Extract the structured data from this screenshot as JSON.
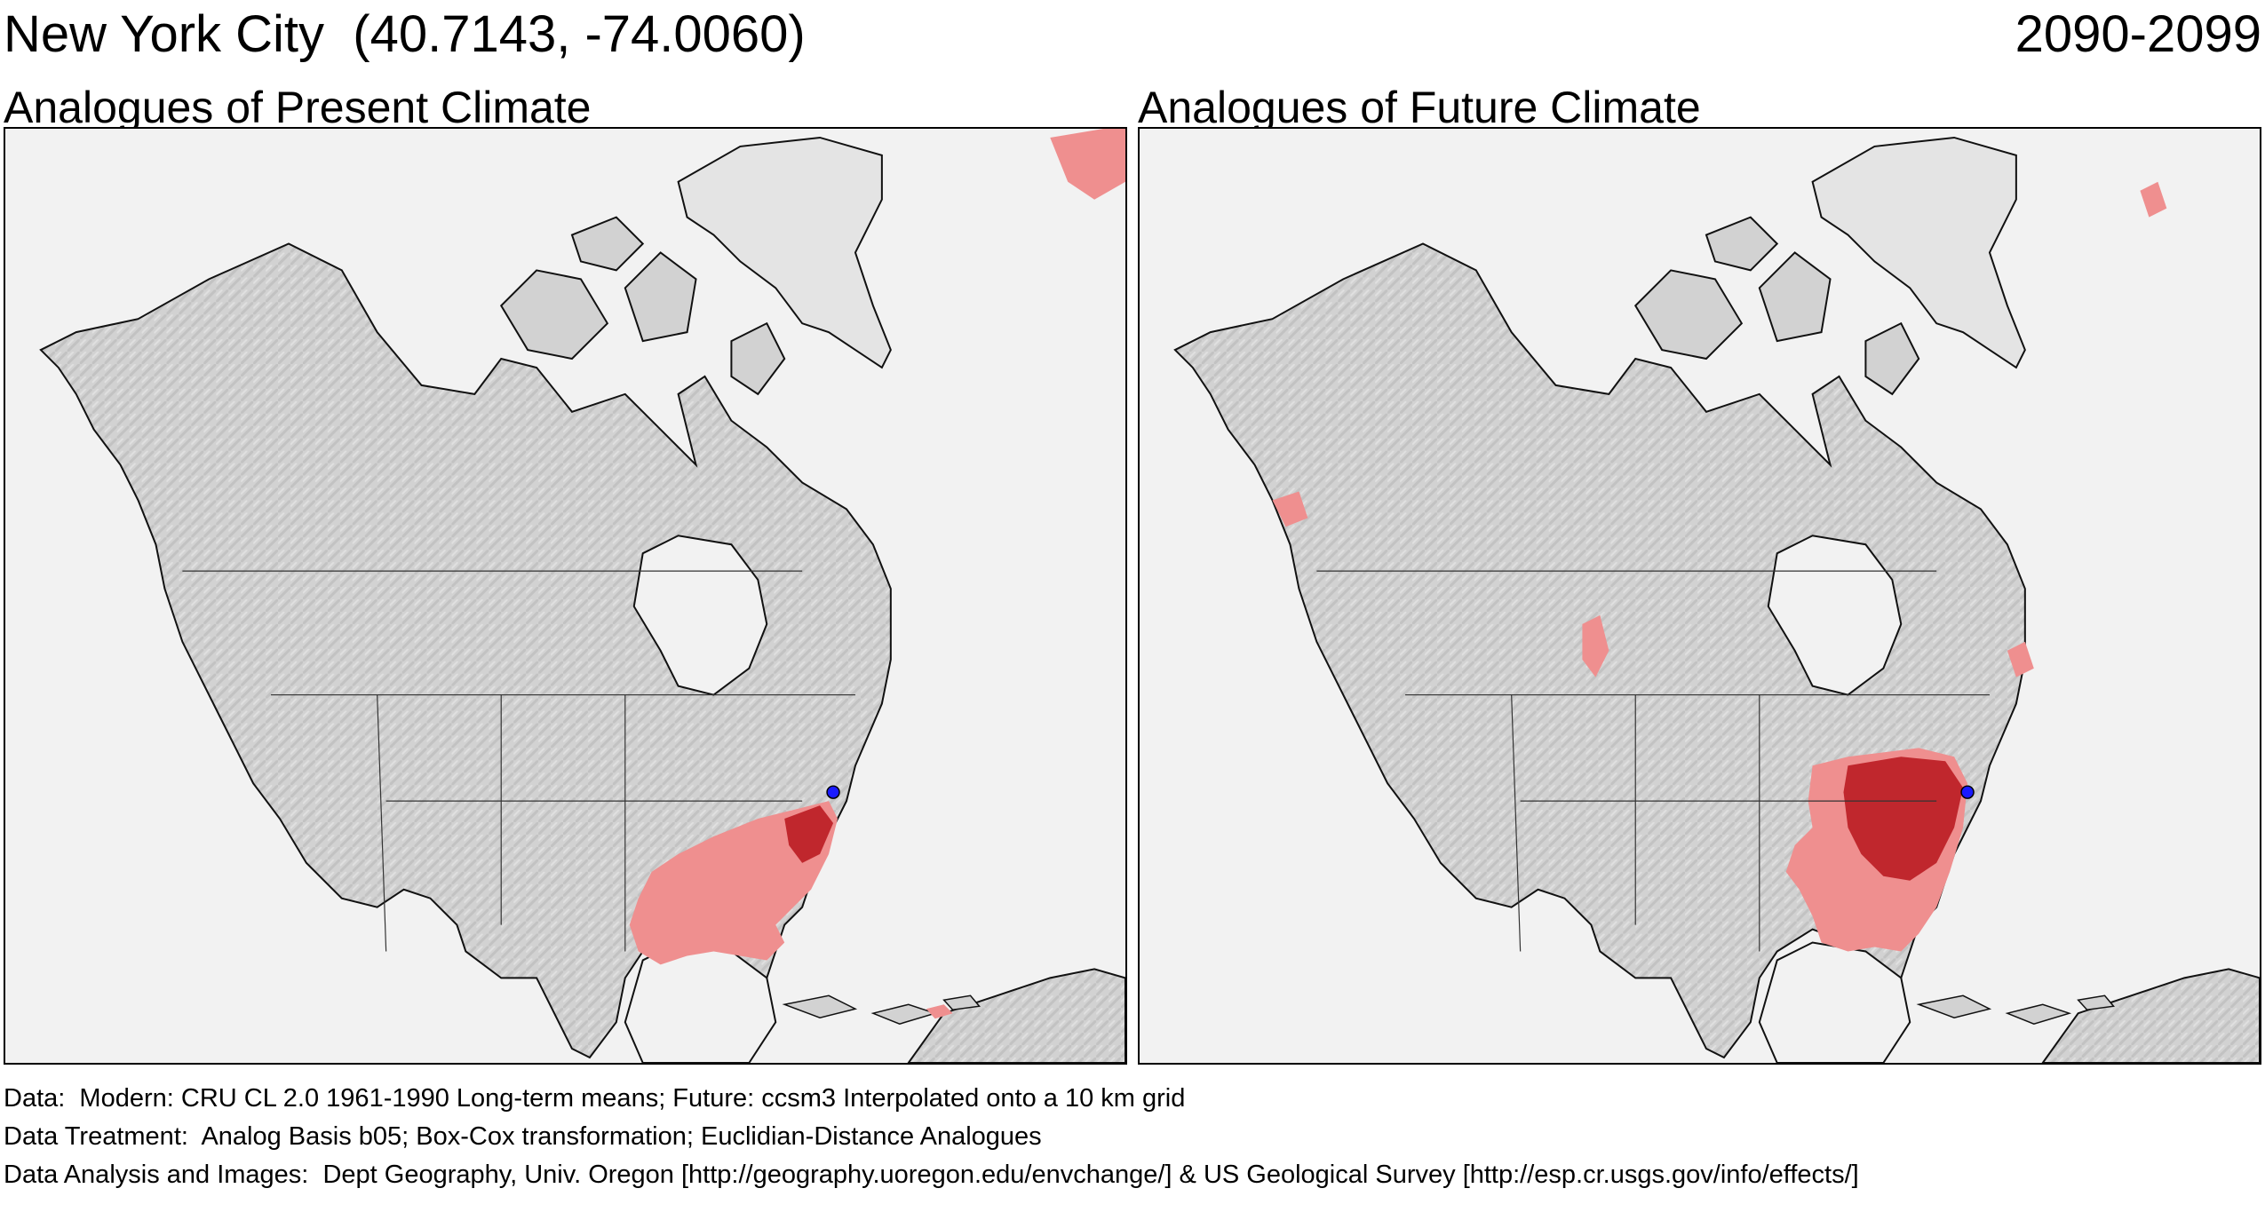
{
  "header": {
    "location": "New York City  (40.7143, -74.0060)",
    "period": "2090-2099"
  },
  "panels": [
    {
      "id": "present",
      "title": "Analogues of Present Climate"
    },
    {
      "id": "future",
      "title": "Analogues of Future Climate"
    }
  ],
  "footer": {
    "line1": "Data:  Modern: CRU CL 2.0 1961-1990 Long-term means; Future: ccsm3 Interpolated onto a 10 km grid",
    "line2": "Data Treatment:  Analog Basis b05; Box-Cox transformation; Euclidian-Distance Analogues",
    "line3": "Data Analysis and Images:  Dept Geography, Univ. Oregon [http://geography.uoregon.edu/envchange/] & US Geological Survey [http://esp.cr.usgs.gov/info/effects/]"
  },
  "colors": {
    "ocean": "#f2f2f2",
    "land": "#d4d4d4",
    "analogue_light": "#ef8f8f",
    "analogue_dark": "#c0272d",
    "site_marker": "#1a1aff"
  }
}
